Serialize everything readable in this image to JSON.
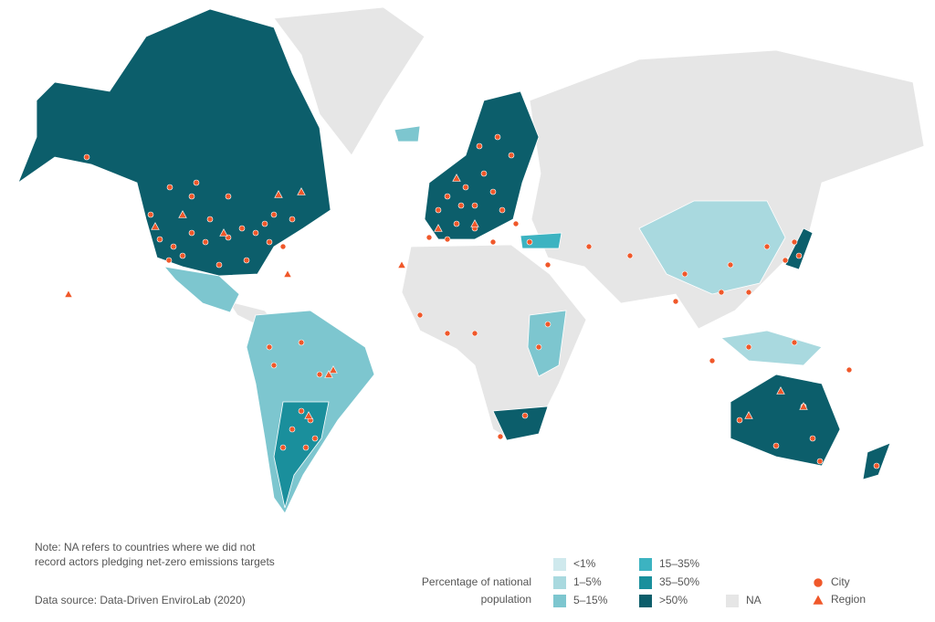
{
  "note": [
    "Note: NA refers to countries where we did not",
    "record actors pledging net-zero emissions targets"
  ],
  "source": "Data source: Data-Driven EnviroLab (2020)",
  "legend": {
    "title": [
      "Percentage of national",
      "population"
    ],
    "items": [
      {
        "label": "<1%",
        "color": "#cfe9ed"
      },
      {
        "label": "1–5%",
        "color": "#a9d9df"
      },
      {
        "label": "5–15%",
        "color": "#7dc6cf"
      },
      {
        "label": "15–35%",
        "color": "#3cb3c1"
      },
      {
        "label": "35–50%",
        "color": "#1a8f9c"
      },
      {
        "label": ">50%",
        "color": "#0c5e6b"
      }
    ],
    "na": {
      "label": "NA",
      "color": "#e6e6e6"
    },
    "markers": [
      {
        "label": "City",
        "shape": "circle",
        "color": "#f0582a"
      },
      {
        "label": "Region",
        "shape": "triangle",
        "color": "#f0582a"
      }
    ]
  }
}
